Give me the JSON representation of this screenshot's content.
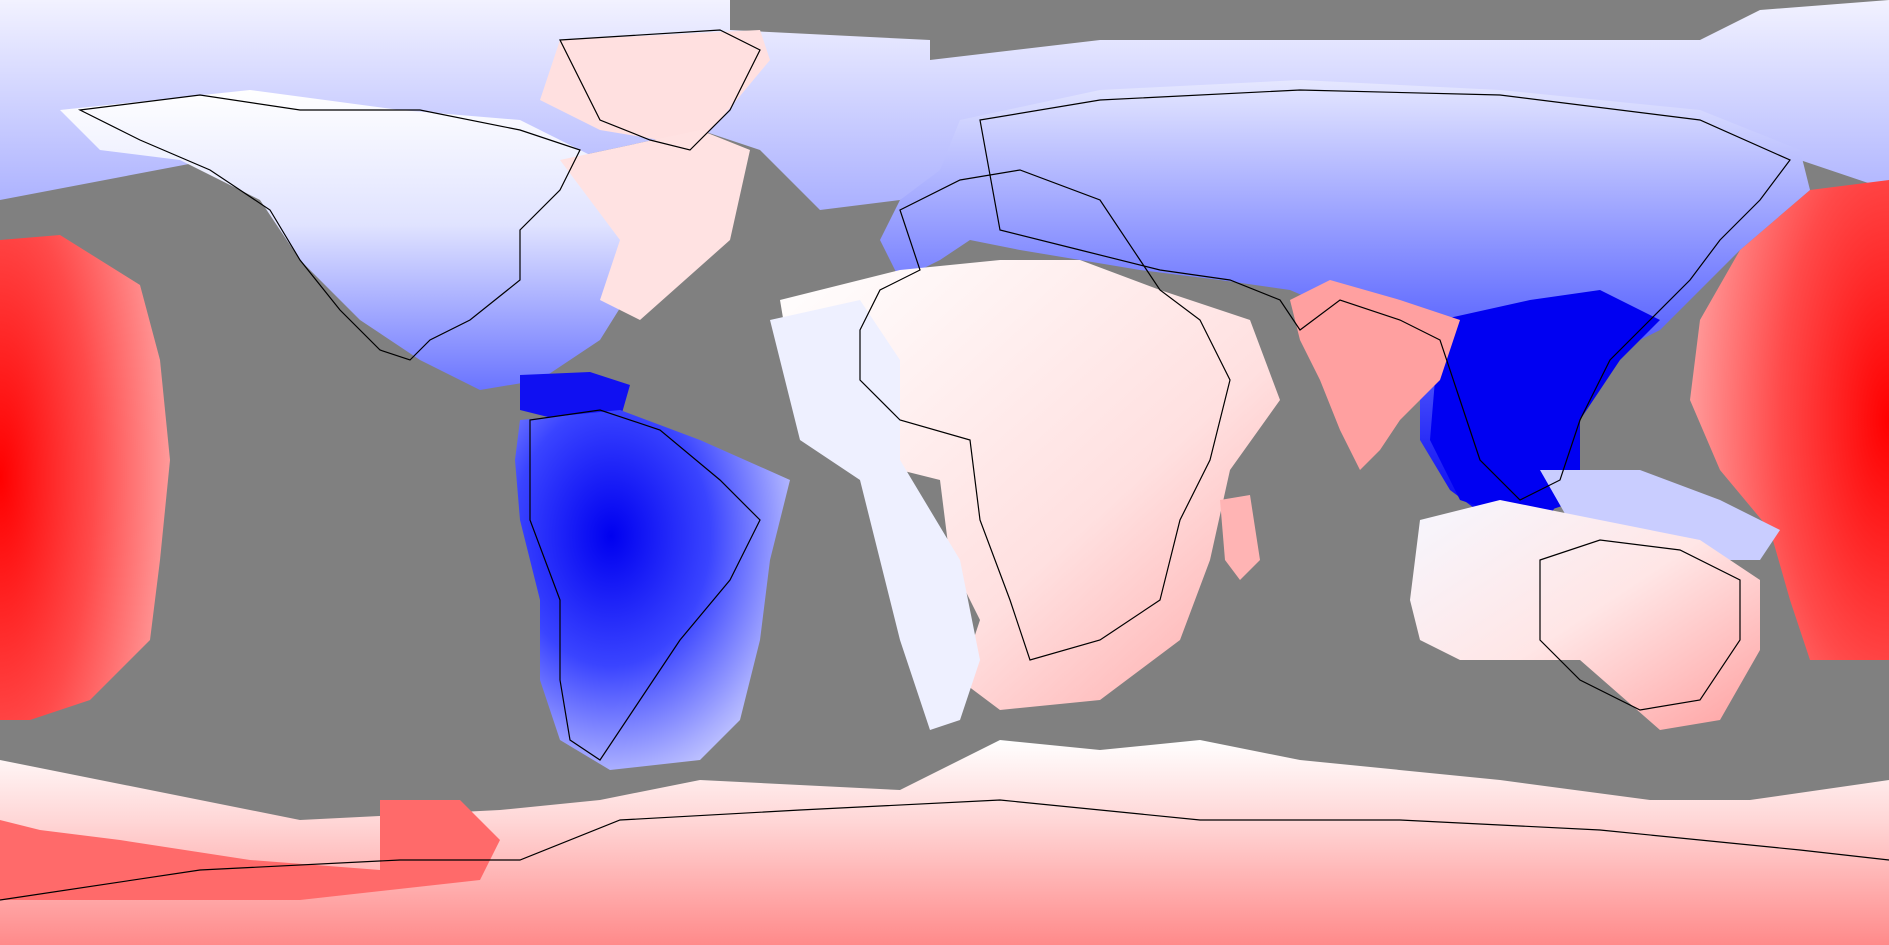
{
  "map": {
    "projection": "equirectangular",
    "extent": {
      "lon": [
        -180,
        180
      ],
      "lat": [
        -90,
        90
      ]
    },
    "colors": {
      "no_data": "#808080",
      "strong_negative": "#0000f2",
      "mid_negative": "#5a64ff",
      "weak_negative": "#c8ccff",
      "neutral": "#ffffff",
      "weak_positive": "#ffd2d2",
      "mid_positive": "#ff9a9a",
      "strong_positive": "#ff0000",
      "coastline": "#000000"
    },
    "legend": null,
    "labels": []
  }
}
